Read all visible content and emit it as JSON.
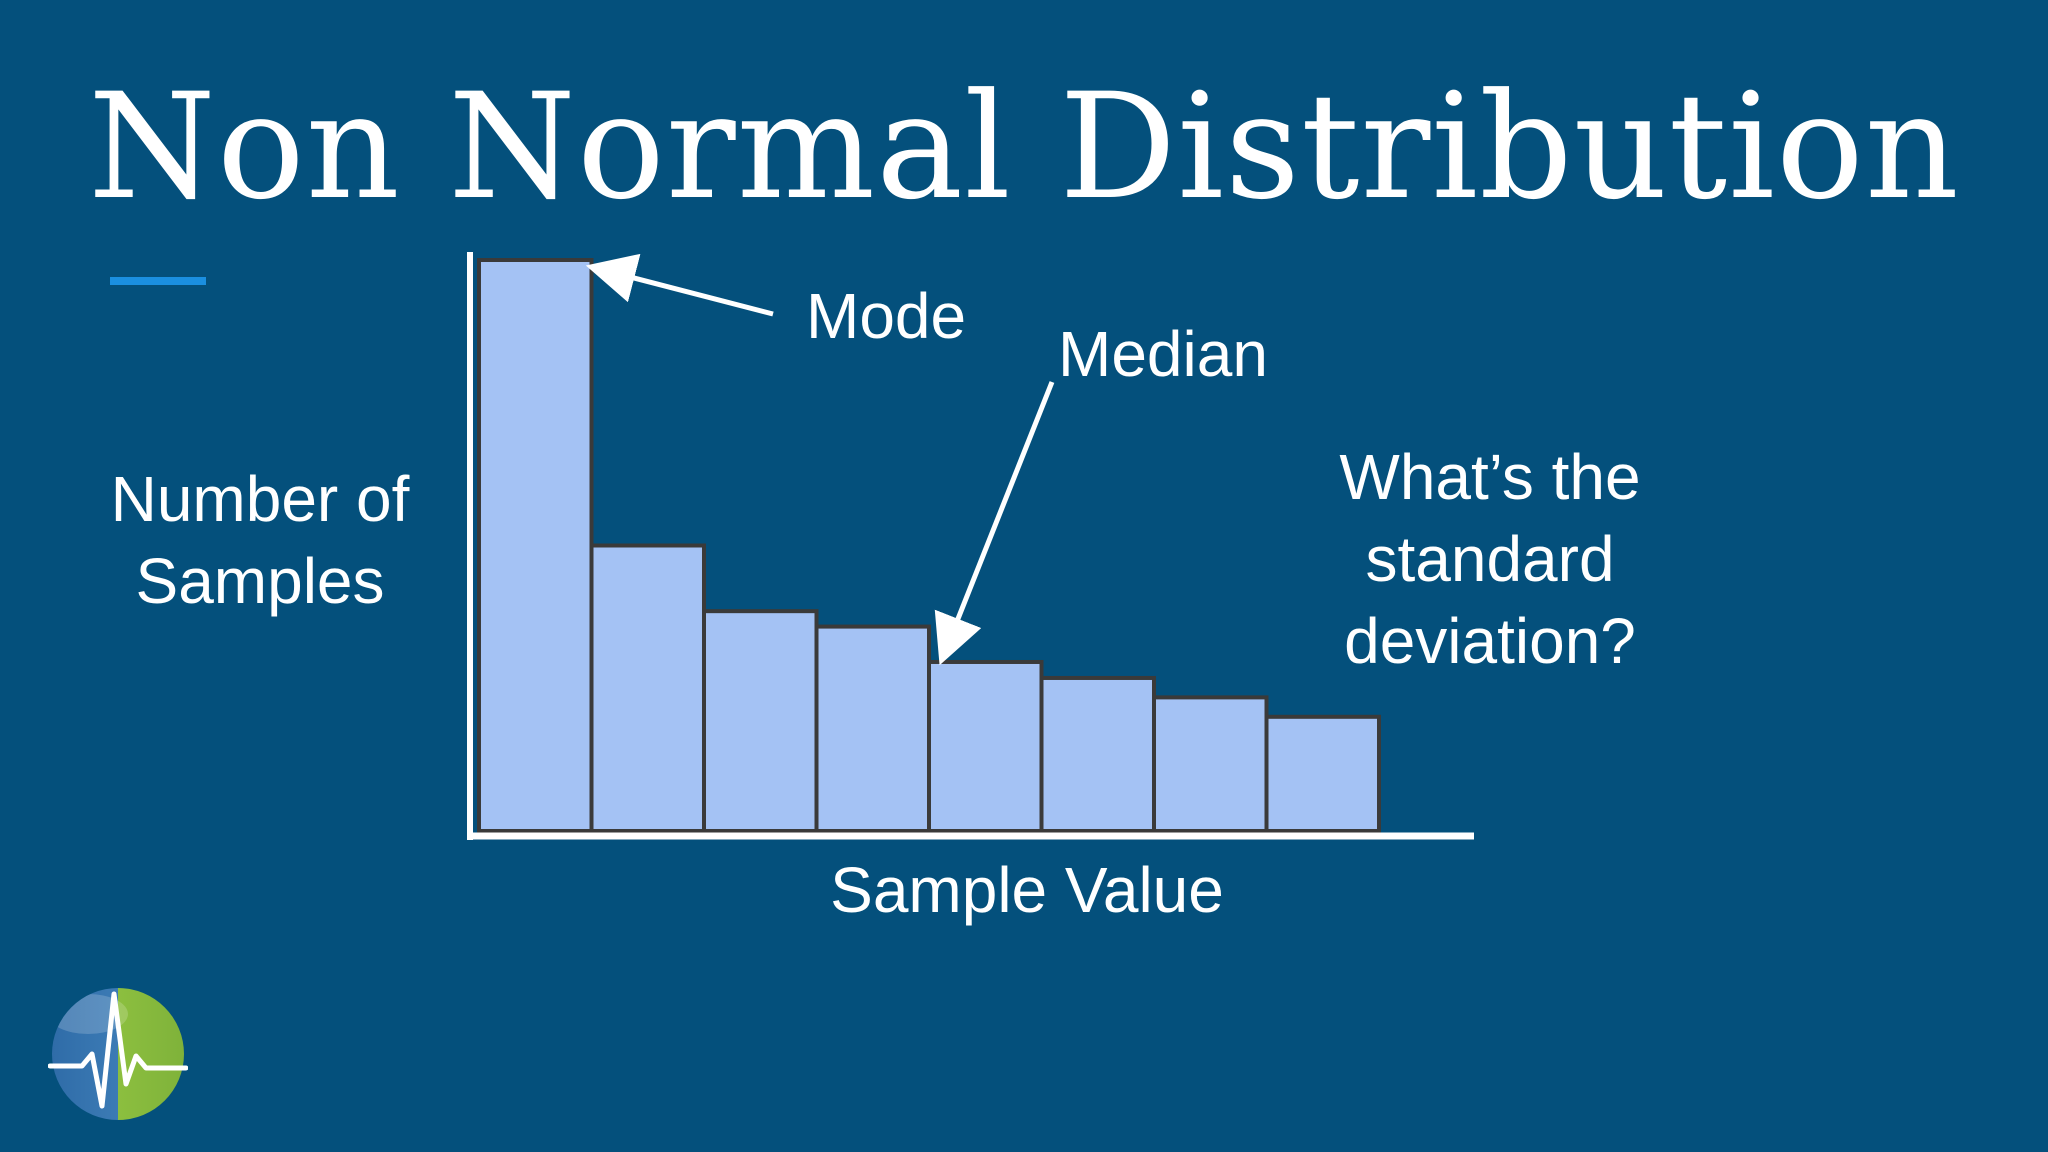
{
  "title": "Non Normal Distribution",
  "question": [
    "What’s the",
    "standard",
    "deviation?"
  ],
  "colors": {
    "background": "#04507c",
    "accent": "#1b8fe0",
    "bar_fill": "#a4c2f4",
    "bar_stroke": "#3a3a3a",
    "logo_blue": "#2f6ca8",
    "logo_green": "#8cbf3f"
  },
  "chart_data": {
    "type": "bar",
    "xlabel": "Sample Value",
    "ylabel_lines": [
      "Number of",
      "Samples"
    ],
    "categories": [
      "",
      "",
      "",
      "",
      "",
      "",
      "",
      ""
    ],
    "values": [
      100,
      50,
      38.5,
      35.8,
      29.6,
      26.8,
      23.4,
      20
    ],
    "ylim": [
      0,
      100
    ],
    "grid": false,
    "annotations": [
      {
        "text": "Mode",
        "bar_index": 0
      },
      {
        "text": "Median",
        "bar_index": 4
      }
    ]
  },
  "logo": {
    "icon": "heartbeat-globe-icon"
  }
}
